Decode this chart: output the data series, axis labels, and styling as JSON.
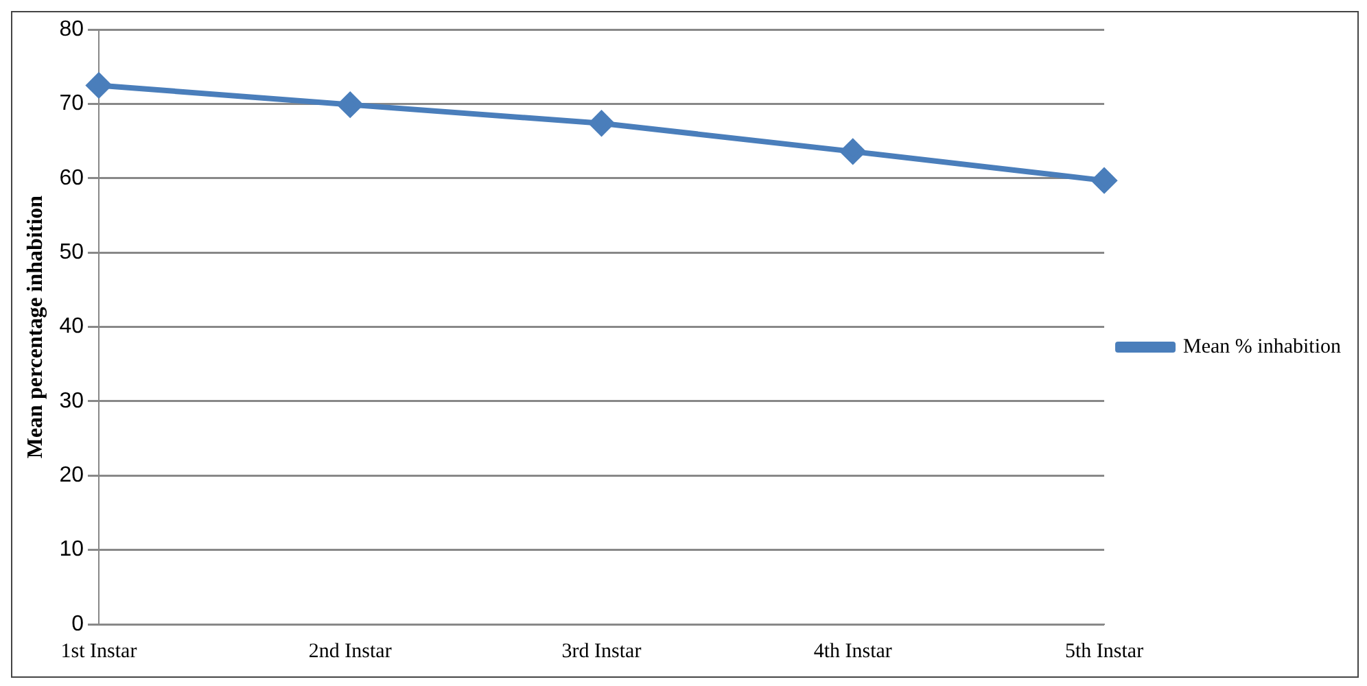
{
  "chart_data": {
    "type": "line",
    "ylabel": "Mean percentage inhabition",
    "categories": [
      "1st Instar",
      "2nd Instar",
      "3rd Instar",
      "4th Instar",
      "5th Instar"
    ],
    "series": [
      {
        "name": "Mean % inhabition",
        "color": "#4a7ebb",
        "values": [
          72.5,
          69.9,
          67.4,
          63.6,
          59.7
        ]
      }
    ],
    "ylim": [
      0,
      80
    ],
    "yticks": [
      0,
      10,
      20,
      30,
      40,
      50,
      60,
      70,
      80
    ],
    "grid": "y",
    "legend": "right",
    "marker": "diamond",
    "line_style": "solid"
  }
}
